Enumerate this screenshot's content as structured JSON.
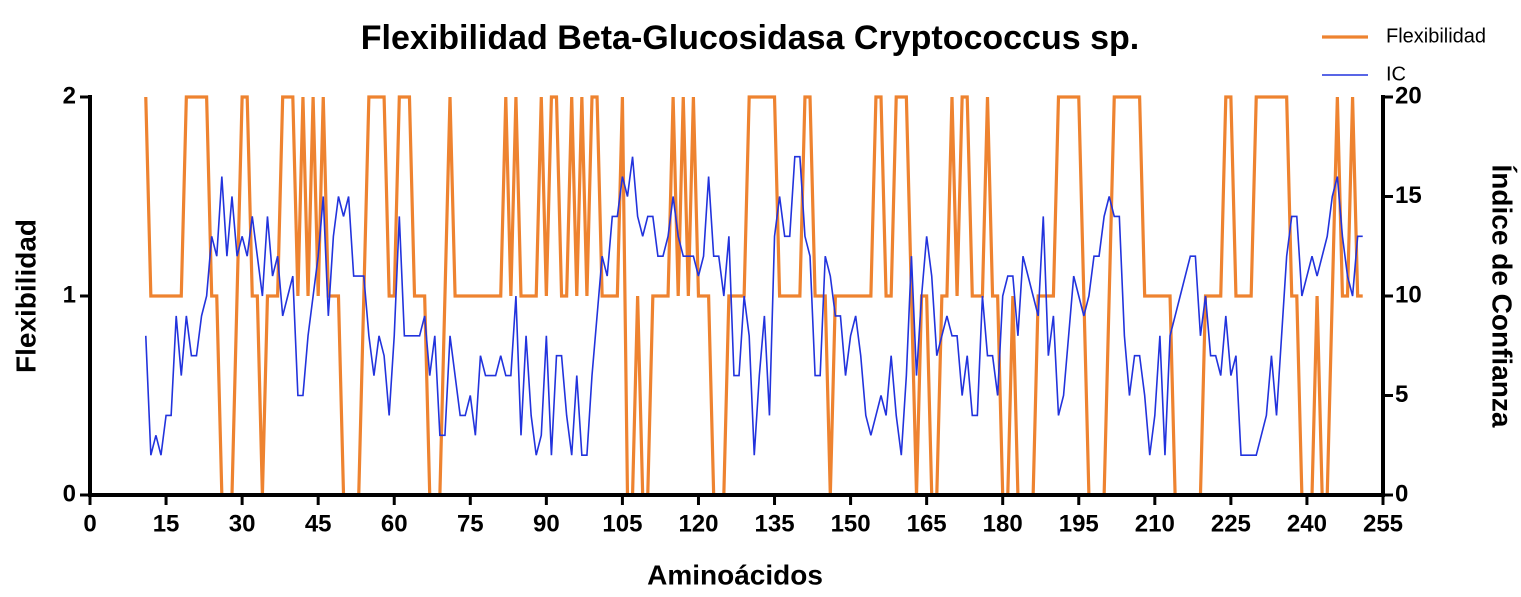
{
  "chart_data": {
    "type": "line",
    "title": "Flexibilidad Beta-Glucosidasa Cryptococcus sp.",
    "xlabel": "Aminoácidos",
    "ylabel": "Flexibilidad",
    "y2label": "Índice de Confianza",
    "x": [
      11,
      12,
      13,
      14,
      15,
      16,
      17,
      18,
      19,
      20,
      21,
      22,
      23,
      24,
      25,
      26,
      27,
      28,
      29,
      30,
      31,
      32,
      33,
      34,
      35,
      36,
      37,
      38,
      39,
      40,
      41,
      42,
      43,
      44,
      45,
      46,
      47,
      48,
      49,
      50,
      51,
      52,
      53,
      54,
      55,
      56,
      57,
      58,
      59,
      60,
      61,
      62,
      63,
      64,
      65,
      66,
      67,
      68,
      69,
      70,
      71,
      72,
      73,
      74,
      75,
      76,
      77,
      78,
      79,
      80,
      81,
      82,
      83,
      84,
      85,
      86,
      87,
      88,
      89,
      90,
      91,
      92,
      93,
      94,
      95,
      96,
      97,
      98,
      99,
      100,
      101,
      102,
      103,
      104,
      105,
      106,
      107,
      108,
      109,
      110,
      111,
      112,
      113,
      114,
      115,
      116,
      117,
      118,
      119,
      120,
      121,
      122,
      123,
      124,
      125,
      126,
      127,
      128,
      129,
      130,
      131,
      132,
      133,
      134,
      135,
      136,
      137,
      138,
      139,
      140,
      141,
      142,
      143,
      144,
      145,
      146,
      147,
      148,
      149,
      150,
      151,
      152,
      153,
      154,
      155,
      156,
      157,
      158,
      159,
      160,
      161,
      162,
      163,
      164,
      165,
      166,
      167,
      168,
      169,
      170,
      171,
      172,
      173,
      174,
      175,
      176,
      177,
      178,
      179,
      180,
      181,
      182,
      183,
      184,
      185,
      186,
      187,
      188,
      189,
      190,
      191,
      192,
      193,
      194,
      195,
      196,
      197,
      198,
      199,
      200,
      201,
      202,
      203,
      204,
      205,
      206,
      207,
      208,
      209,
      210,
      211,
      212,
      213,
      214,
      215,
      216,
      217,
      218,
      219,
      220,
      221,
      222,
      223,
      224,
      225,
      226,
      227,
      228,
      229,
      230,
      231,
      232,
      233,
      234,
      235,
      236,
      237,
      238,
      239,
      240,
      241,
      242,
      243,
      244,
      245,
      246,
      247,
      248,
      249,
      250,
      251
    ],
    "series": [
      {
        "name": "Flexibilidad",
        "color": "#ee8330",
        "axis": "y",
        "values": [
          2,
          1,
          1,
          1,
          1,
          1,
          1,
          1,
          2,
          2,
          2,
          2,
          2,
          1,
          1,
          0,
          0,
          0,
          1,
          2,
          2,
          1,
          1,
          0,
          1,
          1,
          1,
          2,
          2,
          2,
          1,
          2,
          1,
          2,
          1,
          2,
          1,
          1,
          1,
          0,
          0,
          0,
          0,
          1,
          2,
          2,
          2,
          2,
          1,
          1,
          2,
          2,
          2,
          1,
          1,
          1,
          0,
          0,
          0,
          1,
          2,
          1,
          1,
          1,
          1,
          1,
          1,
          1,
          1,
          1,
          1,
          2,
          1,
          2,
          1,
          1,
          1,
          1,
          2,
          1,
          2,
          2,
          1,
          1,
          2,
          1,
          2,
          1,
          2,
          2,
          1,
          1,
          1,
          1,
          2,
          0,
          0,
          1,
          0,
          0,
          1,
          1,
          1,
          1,
          2,
          1,
          2,
          1,
          2,
          1,
          1,
          1,
          0,
          0,
          0,
          1,
          1,
          1,
          1,
          2,
          2,
          2,
          2,
          2,
          2,
          1,
          1,
          1,
          1,
          1,
          2,
          2,
          1,
          1,
          1,
          0,
          1,
          1,
          1,
          1,
          1,
          1,
          1,
          1,
          2,
          2,
          1,
          1,
          2,
          2,
          2,
          1,
          0,
          1,
          1,
          0,
          0,
          1,
          1,
          2,
          1,
          2,
          2,
          1,
          1,
          1,
          2,
          1,
          1,
          0,
          0,
          1,
          0,
          0,
          0,
          0,
          1,
          1,
          1,
          1,
          2,
          2,
          2,
          2,
          2,
          1,
          0,
          0,
          0,
          0,
          1,
          2,
          2,
          2,
          2,
          2,
          2,
          1,
          1,
          1,
          1,
          1,
          1,
          0,
          0,
          0,
          0,
          0,
          0,
          1,
          1,
          1,
          1,
          2,
          2,
          1,
          1,
          1,
          1,
          2,
          2,
          2,
          2,
          2,
          2,
          2,
          1,
          1,
          0,
          0,
          0,
          1,
          0,
          0,
          1,
          2,
          1,
          1,
          2,
          1,
          1
        ]
      },
      {
        "name": "IC",
        "color": "#2233dd",
        "axis": "y2",
        "values": [
          8,
          2,
          3,
          2,
          4,
          4,
          9,
          6,
          9,
          7,
          7,
          9,
          10,
          13,
          12,
          16,
          12,
          15,
          12,
          13,
          12,
          14,
          12,
          10,
          14,
          11,
          12,
          9,
          10,
          11,
          5,
          5,
          8,
          10,
          12,
          15,
          9,
          13,
          15,
          14,
          15,
          11,
          11,
          11,
          8,
          6,
          8,
          7,
          4,
          8,
          14,
          8,
          8,
          8,
          8,
          9,
          6,
          8,
          3,
          3,
          8,
          6,
          4,
          4,
          5,
          3,
          7,
          6,
          6,
          6,
          7,
          6,
          6,
          10,
          3,
          8,
          4,
          2,
          3,
          8,
          2,
          7,
          7,
          4,
          2,
          6,
          2,
          2,
          6,
          9,
          12,
          11,
          14,
          14,
          16,
          15,
          17,
          14,
          13,
          14,
          14,
          12,
          12,
          13,
          15,
          13,
          12,
          12,
          12,
          11,
          12,
          16,
          12,
          12,
          10,
          13,
          6,
          6,
          10,
          8,
          2,
          6,
          9,
          4,
          13,
          15,
          13,
          13,
          17,
          17,
          13,
          12,
          6,
          6,
          12,
          11,
          9,
          9,
          6,
          8,
          9,
          7,
          4,
          3,
          4,
          5,
          4,
          7,
          4,
          2,
          6,
          12,
          6,
          10,
          13,
          11,
          7,
          8,
          9,
          8,
          8,
          5,
          7,
          4,
          4,
          10,
          7,
          7,
          5,
          10,
          11,
          11,
          8,
          12,
          11,
          10,
          9,
          14,
          7,
          9,
          4,
          5,
          8,
          11,
          10,
          9,
          10,
          12,
          12,
          14,
          15,
          14,
          14,
          8,
          5,
          7,
          7,
          5,
          2,
          4,
          8,
          2,
          8,
          9,
          10,
          11,
          12,
          12,
          8,
          10,
          7,
          7,
          6,
          9,
          6,
          7,
          2,
          2,
          2,
          2,
          3,
          4,
          7,
          4,
          8,
          12,
          14,
          14,
          10,
          11,
          12,
          11,
          12,
          13,
          15,
          16,
          13,
          11,
          10,
          13,
          13
        ]
      }
    ],
    "xlim": [
      0,
      255
    ],
    "xticks": [
      0,
      15,
      30,
      45,
      60,
      75,
      90,
      105,
      120,
      135,
      150,
      165,
      180,
      195,
      210,
      225,
      240,
      255
    ],
    "ylim": [
      0,
      2
    ],
    "yticks": [
      0,
      1,
      2
    ],
    "y2lim": [
      0,
      20
    ],
    "y2ticks": [
      0,
      5,
      10,
      15,
      20
    ],
    "grid": false,
    "legend": "upper right"
  }
}
